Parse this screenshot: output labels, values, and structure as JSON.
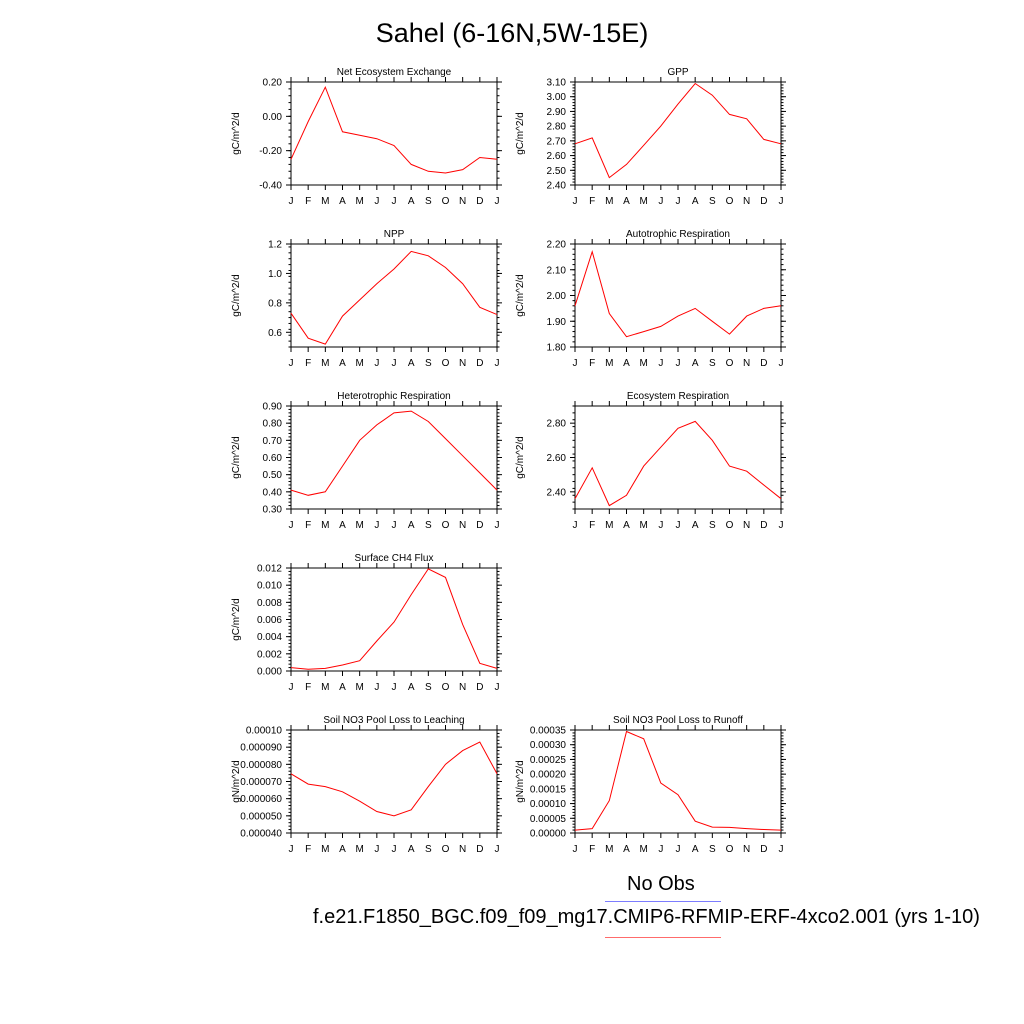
{
  "title": "Sahel (6-16N,5W-15E)",
  "legend": {
    "obs_label": "No Obs",
    "case_label": "f.e21.F1850_BGC.f09_f09_mg17.CMIP6-RFMIP-ERF-4xco2.001 (yrs 1-10)",
    "obs_color": "#7d7dff",
    "case_color": "#ff6b6b"
  },
  "series_color": "#ff0000",
  "chart_data": [
    {
      "type": "line",
      "title": "Net Ecosystem Exchange",
      "ylabel": "gC/m^2/d",
      "x": [
        "J",
        "F",
        "M",
        "A",
        "M",
        "J",
        "J",
        "A",
        "S",
        "O",
        "N",
        "D",
        "J"
      ],
      "values": [
        -0.25,
        -0.03,
        0.17,
        -0.09,
        -0.11,
        -0.13,
        -0.17,
        -0.28,
        -0.32,
        -0.33,
        -0.31,
        -0.24,
        -0.25
      ],
      "ylim": [
        -0.4,
        0.2
      ],
      "yticks": [
        -0.4,
        -0.2,
        0.0,
        0.2
      ],
      "yticklabels": [
        "-0.40",
        "-0.20",
        "0.00",
        "0.20"
      ]
    },
    {
      "type": "line",
      "title": "GPP",
      "ylabel": "gC/m^2/d",
      "x": [
        "J",
        "F",
        "M",
        "A",
        "M",
        "J",
        "J",
        "A",
        "S",
        "O",
        "N",
        "D",
        "J"
      ],
      "values": [
        2.68,
        2.72,
        2.45,
        2.54,
        2.67,
        2.8,
        2.95,
        3.09,
        3.01,
        2.88,
        2.85,
        2.71,
        2.68
      ],
      "ylim": [
        2.4,
        3.1
      ],
      "yticks": [
        2.4,
        2.5,
        2.6,
        2.7,
        2.8,
        2.9,
        3.0,
        3.1
      ],
      "yticklabels": [
        "2.40",
        "2.50",
        "2.60",
        "2.70",
        "2.80",
        "2.90",
        "3.00",
        "3.10"
      ]
    },
    {
      "type": "line",
      "title": "NPP",
      "ylabel": "gC/m^2/d",
      "x": [
        "J",
        "F",
        "M",
        "A",
        "M",
        "J",
        "J",
        "A",
        "S",
        "O",
        "N",
        "D",
        "J"
      ],
      "values": [
        0.73,
        0.56,
        0.52,
        0.71,
        0.82,
        0.93,
        1.03,
        1.15,
        1.12,
        1.04,
        0.93,
        0.77,
        0.72
      ],
      "ylim": [
        0.5,
        1.2
      ],
      "yticks": [
        0.6,
        0.8,
        1.0,
        1.2
      ],
      "yticklabels": [
        "0.6",
        "0.8",
        "1.0",
        "1.2"
      ]
    },
    {
      "type": "line",
      "title": "Autotrophic Respiration",
      "ylabel": "gC/m^2/d",
      "x": [
        "J",
        "F",
        "M",
        "A",
        "M",
        "J",
        "J",
        "A",
        "S",
        "O",
        "N",
        "D",
        "J"
      ],
      "values": [
        1.96,
        2.17,
        1.93,
        1.84,
        1.86,
        1.88,
        1.92,
        1.95,
        1.9,
        1.85,
        1.92,
        1.95,
        1.96
      ],
      "ylim": [
        1.8,
        2.2
      ],
      "yticks": [
        1.8,
        1.9,
        2.0,
        2.1,
        2.2
      ],
      "yticklabels": [
        "1.80",
        "1.90",
        "2.00",
        "2.10",
        "2.20"
      ]
    },
    {
      "type": "line",
      "title": "Heterotrophic Respiration",
      "ylabel": "gC/m^2/d",
      "x": [
        "J",
        "F",
        "M",
        "A",
        "M",
        "J",
        "J",
        "A",
        "S",
        "O",
        "N",
        "D",
        "J"
      ],
      "values": [
        0.41,
        0.38,
        0.4,
        0.55,
        0.7,
        0.79,
        0.86,
        0.87,
        0.81,
        0.71,
        0.61,
        0.51,
        0.41
      ],
      "ylim": [
        0.3,
        0.9
      ],
      "yticks": [
        0.3,
        0.4,
        0.5,
        0.6,
        0.7,
        0.8,
        0.9
      ],
      "yticklabels": [
        "0.30",
        "0.40",
        "0.50",
        "0.60",
        "0.70",
        "0.80",
        "0.90"
      ]
    },
    {
      "type": "line",
      "title": "Ecosystem Respiration",
      "ylabel": "gC/m^2/d",
      "x": [
        "J",
        "F",
        "M",
        "A",
        "M",
        "J",
        "J",
        "A",
        "S",
        "O",
        "N",
        "D",
        "J"
      ],
      "values": [
        2.36,
        2.54,
        2.32,
        2.38,
        2.55,
        2.66,
        2.77,
        2.81,
        2.7,
        2.55,
        2.52,
        2.44,
        2.36
      ],
      "ylim": [
        2.3,
        2.9
      ],
      "yticks": [
        2.4,
        2.6,
        2.8
      ],
      "yticklabels": [
        "2.40",
        "2.60",
        "2.80"
      ]
    },
    {
      "type": "line",
      "title": "Surface CH4 Flux",
      "ylabel": "gC/m^2/d",
      "x": [
        "J",
        "F",
        "M",
        "A",
        "M",
        "J",
        "J",
        "A",
        "S",
        "O",
        "N",
        "D",
        "J"
      ],
      "values": [
        0.0004,
        0.0002,
        0.0003,
        0.0007,
        0.0012,
        0.0035,
        0.0057,
        0.0089,
        0.0119,
        0.0109,
        0.0054,
        0.0009,
        0.0003
      ],
      "ylim": [
        0,
        0.012
      ],
      "yticks": [
        0,
        0.002,
        0.004,
        0.006,
        0.008,
        0.01,
        0.012
      ],
      "yticklabels": [
        "0.000",
        "0.002",
        "0.004",
        "0.006",
        "0.008",
        "0.010",
        "0.012"
      ]
    },
    {
      "type": "line",
      "title": "Soil NO3 Pool Loss to Leaching",
      "ylabel": "gN/m^2/d",
      "x": [
        "J",
        "F",
        "M",
        "A",
        "M",
        "J",
        "J",
        "A",
        "S",
        "O",
        "N",
        "D",
        "J"
      ],
      "values": [
        7.45e-05,
        6.85e-05,
        6.7e-05,
        6.4e-05,
        5.85e-05,
        5.25e-05,
        5e-05,
        5.35e-05,
        6.7e-05,
        8e-05,
        8.8e-05,
        9.3e-05,
        7.45e-05
      ],
      "ylim": [
        4e-05,
        0.0001
      ],
      "yticks": [
        4e-05,
        5e-05,
        6e-05,
        7e-05,
        8e-05,
        9e-05,
        0.0001
      ],
      "yticklabels": [
        "0.000040",
        "0.000050",
        "0.000060",
        "0.000070",
        "0.000080",
        "0.000090",
        "0.00010"
      ]
    },
    {
      "type": "line",
      "title": "Soil NO3 Pool Loss to Runoff",
      "ylabel": "gN/m^2/d",
      "x": [
        "J",
        "F",
        "M",
        "A",
        "M",
        "J",
        "J",
        "A",
        "S",
        "O",
        "N",
        "D",
        "J"
      ],
      "values": [
        1e-05,
        1.5e-05,
        0.00011,
        0.000345,
        0.00032,
        0.00017,
        0.00013,
        4e-05,
        2e-05,
        1.9e-05,
        1.5e-05,
        1.2e-05,
        1e-05
      ],
      "ylim": [
        0,
        0.00035
      ],
      "yticks": [
        0,
        5e-05,
        0.0001,
        0.00015,
        0.0002,
        0.00025,
        0.0003,
        0.00035
      ],
      "yticklabels": [
        "0.00000",
        "0.00005",
        "0.00010",
        "0.00015",
        "0.00020",
        "0.00025",
        "0.00030",
        "0.00035"
      ]
    }
  ]
}
